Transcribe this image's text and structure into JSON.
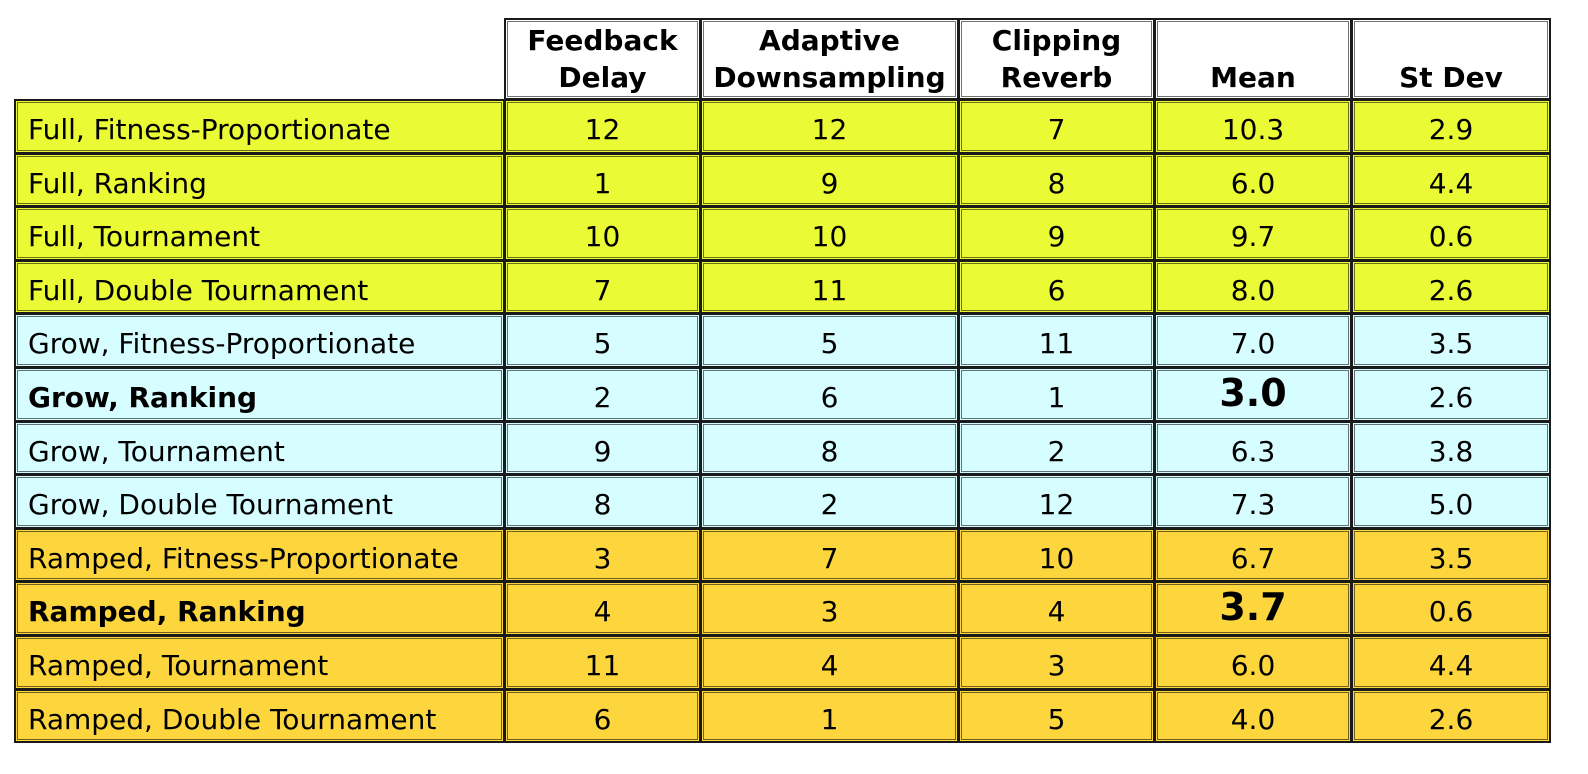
{
  "chart_data": {
    "type": "table",
    "columns": [
      "Feedback\nDelay",
      "Adaptive\nDownsampling",
      "Clipping\nReverb",
      "Mean",
      "St Dev"
    ],
    "rows": [
      {
        "label": "Full, Fitness-Proportionate",
        "values": [
          "12",
          "12",
          "7",
          "10.3",
          "2.9"
        ],
        "group": "full",
        "bold": false
      },
      {
        "label": "Full, Ranking",
        "values": [
          "1",
          "9",
          "8",
          "6.0",
          "4.4"
        ],
        "group": "full",
        "bold": false
      },
      {
        "label": "Full, Tournament",
        "values": [
          "10",
          "10",
          "9",
          "9.7",
          "0.6"
        ],
        "group": "full",
        "bold": false
      },
      {
        "label": "Full, Double Tournament",
        "values": [
          "7",
          "11",
          "6",
          "8.0",
          "2.6"
        ],
        "group": "full",
        "bold": false
      },
      {
        "label": "Grow, Fitness-Proportionate",
        "values": [
          "5",
          "5",
          "11",
          "7.0",
          "3.5"
        ],
        "group": "grow",
        "bold": false
      },
      {
        "label": "Grow, Ranking",
        "values": [
          "2",
          "6",
          "1",
          "3.0",
          "2.6"
        ],
        "group": "grow",
        "bold": true
      },
      {
        "label": "Grow, Tournament",
        "values": [
          "9",
          "8",
          "2",
          "6.3",
          "3.8"
        ],
        "group": "grow",
        "bold": false
      },
      {
        "label": "Grow, Double Tournament",
        "values": [
          "8",
          "2",
          "12",
          "7.3",
          "5.0"
        ],
        "group": "grow",
        "bold": false
      },
      {
        "label": "Ramped, Fitness-Proportionate",
        "values": [
          "3",
          "7",
          "10",
          "6.7",
          "3.5"
        ],
        "group": "ramped",
        "bold": false
      },
      {
        "label": "Ramped, Ranking",
        "values": [
          "4",
          "3",
          "4",
          "3.7",
          "0.6"
        ],
        "group": "ramped",
        "bold": true
      },
      {
        "label": "Ramped, Tournament",
        "values": [
          "11",
          "4",
          "3",
          "6.0",
          "4.4"
        ],
        "group": "ramped",
        "bold": false
      },
      {
        "label": "Ramped, Double Tournament",
        "values": [
          "6",
          "1",
          "5",
          "4.0",
          "2.6"
        ],
        "group": "ramped",
        "bold": false
      }
    ],
    "highlight_column": 3,
    "group_colors": {
      "full": "#eafa34",
      "grow": "#d6fdff",
      "ramped": "#fdd63e"
    }
  }
}
